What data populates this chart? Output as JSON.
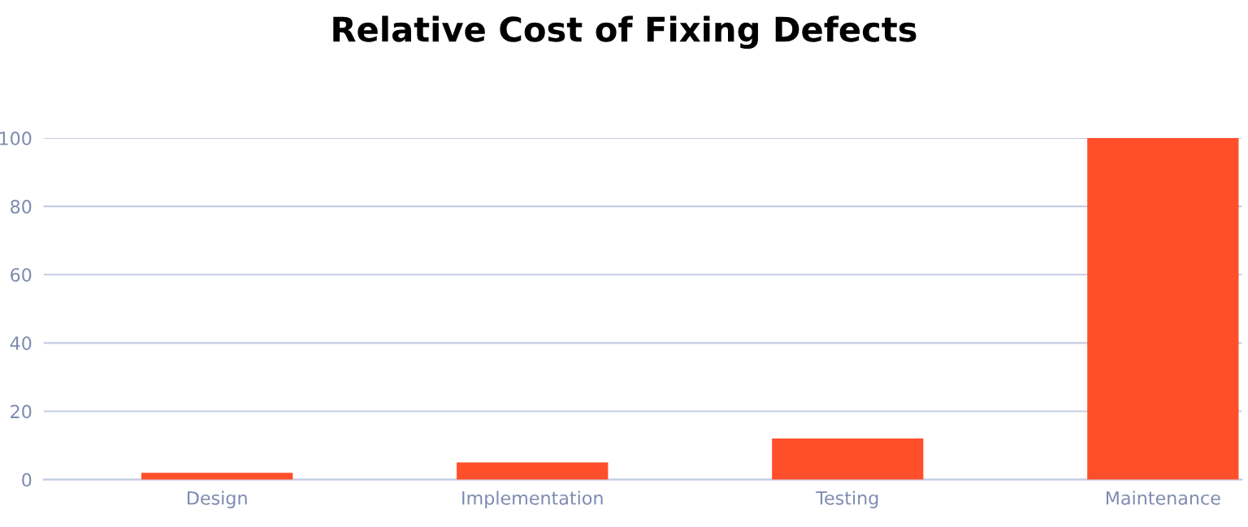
{
  "chart_data": {
    "type": "bar",
    "title": "Relative Cost of Fixing Defects",
    "categories": [
      "Design",
      "Implementation",
      "Testing",
      "Maintenance"
    ],
    "values": [
      2,
      5,
      12,
      100
    ],
    "color": "#ff4f2a",
    "ylim": [
      0,
      100
    ],
    "yticks": [
      0,
      20,
      40,
      60,
      80,
      100
    ],
    "grid": "y"
  }
}
